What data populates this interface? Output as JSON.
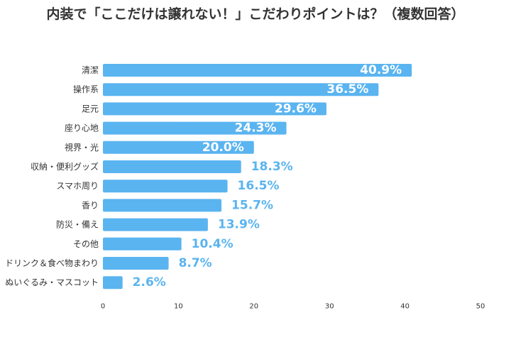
{
  "chart_data": {
    "type": "bar",
    "orientation": "horizontal",
    "title": "内装で「ここだけは譲れない！」こだわりポイントは？（複数回答）",
    "xlabel": "",
    "ylabel": "",
    "xlim": [
      0,
      50
    ],
    "ticks": [
      0,
      10,
      20,
      30,
      40,
      50
    ],
    "tick_labels": [
      "0",
      "10",
      "20",
      "30",
      "40",
      "50"
    ],
    "categories": [
      "清潔",
      "操作系",
      "足元",
      "座り心地",
      "視界・光",
      "収納・便利グッズ",
      "スマホ周り",
      "香り",
      "防災・備え",
      "その他",
      "ドリンク＆食べ物まわり",
      "ぬいぐるみ・マスコット"
    ],
    "values": [
      40.9,
      36.5,
      29.6,
      24.3,
      20.0,
      18.3,
      16.5,
      15.7,
      13.9,
      10.4,
      8.7,
      2.6
    ],
    "value_labels": [
      "40.9%",
      "36.5%",
      "29.6%",
      "24.3%",
      "20.0%",
      "18.3%",
      "16.5%",
      "15.7%",
      "13.9%",
      "10.4%",
      "8.7%",
      "2.6%"
    ],
    "bar_color": "#5ab4f0",
    "grid": false,
    "legend": "none"
  }
}
